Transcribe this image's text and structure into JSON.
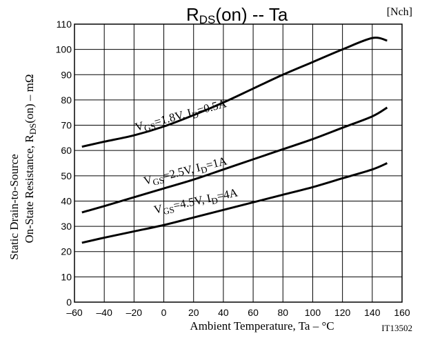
{
  "chart_data": {
    "type": "line",
    "title": {
      "main": "R",
      "sub": "DS",
      "rest": "(on)  --  Ta"
    },
    "tag": "[Nch]",
    "figure_code": "IT13502",
    "xlabel": "Ambient Temperature, Ta  –  °C",
    "ylabel_line1": "Static Drain-to-Source",
    "ylabel_line2": {
      "pre": "On-State Resistance, R",
      "sub": "DS",
      "post": "(on)  –  mΩ"
    },
    "xlim": [
      -60,
      160
    ],
    "ylim": [
      0,
      110
    ],
    "xticks": [
      "–60",
      "–40",
      "–20",
      "0",
      "20",
      "40",
      "60",
      "80",
      "100",
      "120",
      "140",
      "160"
    ],
    "yticks": [
      "0",
      "10",
      "20",
      "30",
      "40",
      "50",
      "60",
      "70",
      "80",
      "90",
      "100",
      "110"
    ],
    "grid": true,
    "series": [
      {
        "label": {
          "v": "V",
          "vsub": "GS",
          "mid": "=1.8V, I",
          "isub": "D",
          "end": "=0.5A"
        },
        "x": [
          -55,
          -40,
          -20,
          0,
          20,
          40,
          60,
          80,
          100,
          120,
          140,
          150
        ],
        "y": [
          61.5,
          63.5,
          66,
          69.5,
          74,
          79,
          84.5,
          90,
          95,
          100,
          104.5,
          103.5
        ]
      },
      {
        "label": {
          "v": "V",
          "vsub": "GS",
          "mid": "=2.5V, I",
          "isub": "D",
          "end": "=1A"
        },
        "x": [
          -55,
          -40,
          -20,
          0,
          20,
          40,
          60,
          80,
          100,
          120,
          140,
          150
        ],
        "y": [
          35.5,
          38,
          41.5,
          45,
          48.5,
          52.5,
          56.5,
          60.5,
          64.5,
          69,
          73.5,
          77
        ]
      },
      {
        "label": {
          "v": "V",
          "vsub": "GS",
          "mid": "=4.5V, I",
          "isub": "D",
          "end": "=4A"
        },
        "x": [
          -55,
          -40,
          -20,
          0,
          20,
          40,
          60,
          80,
          100,
          120,
          140,
          150
        ],
        "y": [
          23.5,
          25.5,
          28,
          30.5,
          33.5,
          36.5,
          39.5,
          42.5,
          45.5,
          49,
          52.5,
          55
        ]
      }
    ]
  }
}
